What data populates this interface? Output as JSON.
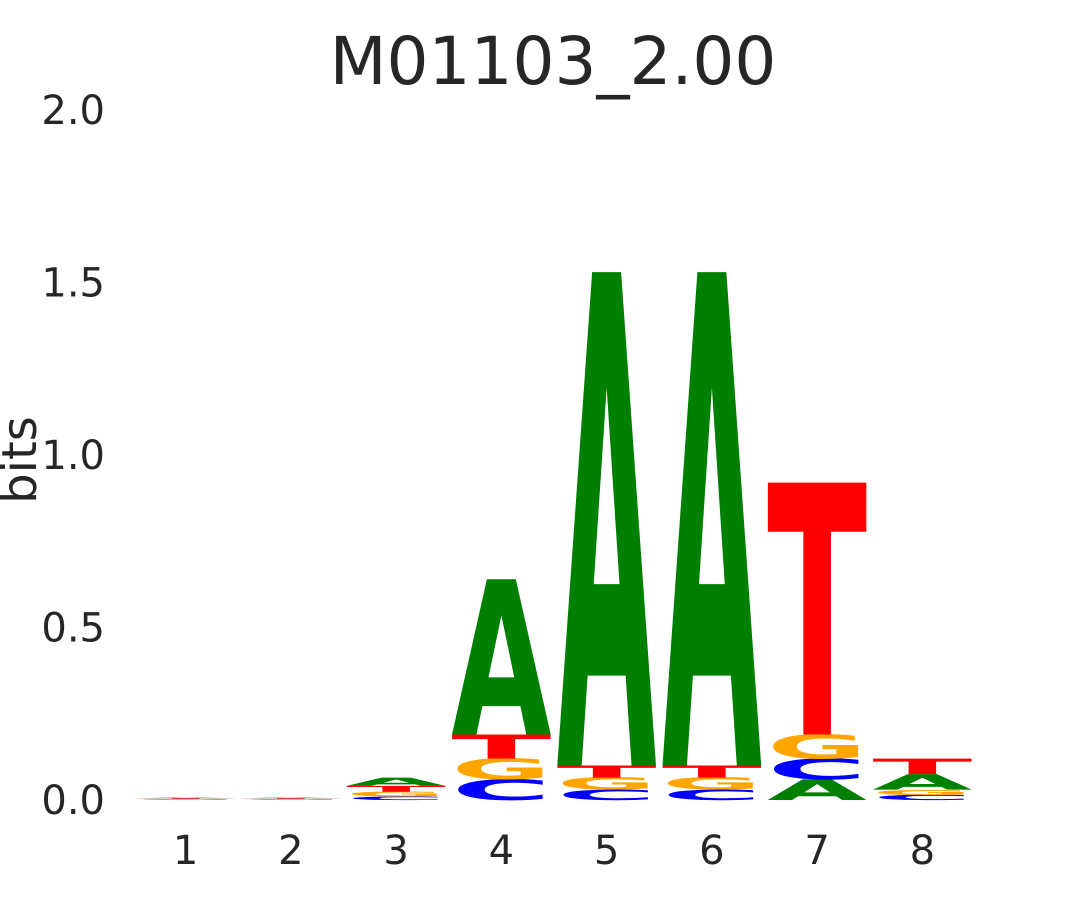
{
  "chart_data": {
    "type": "sequence-logo",
    "title": "M01103_2.00",
    "ylabel": "bits",
    "xlabel": "",
    "ylim": [
      0,
      2.0
    ],
    "yticks": [
      "0.0",
      "0.5",
      "1.0",
      "1.5",
      "2.0"
    ],
    "ytick_values": [
      0,
      0.5,
      1.0,
      1.5,
      2.0
    ],
    "positions": [
      "1",
      "2",
      "3",
      "4",
      "5",
      "6",
      "7",
      "8"
    ],
    "grid": false,
    "colors": {
      "A": "#008000",
      "C": "#0000ff",
      "G": "#ffa500",
      "T": "#ff0000"
    },
    "stacks": [
      [
        {
          "letter": "C",
          "value": 0.001
        },
        {
          "letter": "G",
          "value": 0.002
        },
        {
          "letter": "T",
          "value": 0.002
        },
        {
          "letter": "A",
          "value": 0.002
        }
      ],
      [
        {
          "letter": "C",
          "value": 0.001
        },
        {
          "letter": "G",
          "value": 0.002
        },
        {
          "letter": "T",
          "value": 0.002
        },
        {
          "letter": "A",
          "value": 0.002
        }
      ],
      [
        {
          "letter": "C",
          "value": 0.01
        },
        {
          "letter": "G",
          "value": 0.014
        },
        {
          "letter": "T",
          "value": 0.017
        },
        {
          "letter": "A",
          "value": 0.024
        }
      ],
      [
        {
          "letter": "C",
          "value": 0.06
        },
        {
          "letter": "G",
          "value": 0.06
        },
        {
          "letter": "T",
          "value": 0.07
        },
        {
          "letter": "A",
          "value": 0.45
        }
      ],
      [
        {
          "letter": "C",
          "value": 0.03
        },
        {
          "letter": "G",
          "value": 0.035
        },
        {
          "letter": "T",
          "value": 0.035
        },
        {
          "letter": "A",
          "value": 1.43
        }
      ],
      [
        {
          "letter": "C",
          "value": 0.03
        },
        {
          "letter": "G",
          "value": 0.035
        },
        {
          "letter": "T",
          "value": 0.035
        },
        {
          "letter": "A",
          "value": 1.43
        }
      ],
      [
        {
          "letter": "A",
          "value": 0.06
        },
        {
          "letter": "C",
          "value": 0.06
        },
        {
          "letter": "G",
          "value": 0.07
        },
        {
          "letter": "T",
          "value": 0.73
        }
      ],
      [
        {
          "letter": "C",
          "value": 0.015
        },
        {
          "letter": "G",
          "value": 0.015
        },
        {
          "letter": "A",
          "value": 0.045
        },
        {
          "letter": "T",
          "value": 0.045
        }
      ]
    ]
  }
}
